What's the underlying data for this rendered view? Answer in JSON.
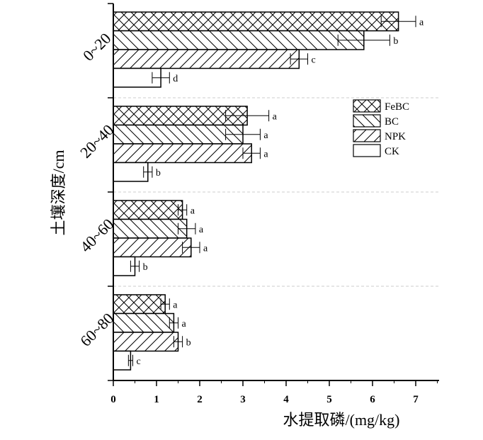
{
  "chart_data": {
    "type": "bar",
    "orientation": "horizontal",
    "xlabel": "水提取磷/(mg/kg)",
    "ylabel": "土壤深度/cm",
    "xlim": [
      0,
      7.5
    ],
    "xticks": [
      0,
      1,
      2,
      3,
      4,
      5,
      6,
      7
    ],
    "categories": [
      "0~20",
      "20~40",
      "40~60",
      "60~80"
    ],
    "series": [
      {
        "name": "FeBC",
        "values": [
          6.6,
          3.1,
          1.6,
          1.2
        ],
        "errors": [
          0.4,
          0.5,
          0.1,
          0.1
        ],
        "labels": [
          "a",
          "a",
          "a",
          "a"
        ]
      },
      {
        "name": "BC",
        "values": [
          5.8,
          3.0,
          1.7,
          1.4
        ],
        "errors": [
          0.6,
          0.4,
          0.2,
          0.1
        ],
        "labels": [
          "b",
          "a",
          "a",
          "a"
        ]
      },
      {
        "name": "NPK",
        "values": [
          4.3,
          3.2,
          1.8,
          1.5
        ],
        "errors": [
          0.2,
          0.2,
          0.2,
          0.1
        ],
        "labels": [
          "c",
          "a",
          "a",
          "b"
        ]
      },
      {
        "name": "CK",
        "values": [
          1.1,
          0.8,
          0.5,
          0.4
        ],
        "errors": [
          0.2,
          0.1,
          0.1,
          0.05
        ],
        "labels": [
          "d",
          "b",
          "b",
          "c"
        ]
      }
    ],
    "legend_position": "top-right",
    "grid": false,
    "category_separators": true
  }
}
